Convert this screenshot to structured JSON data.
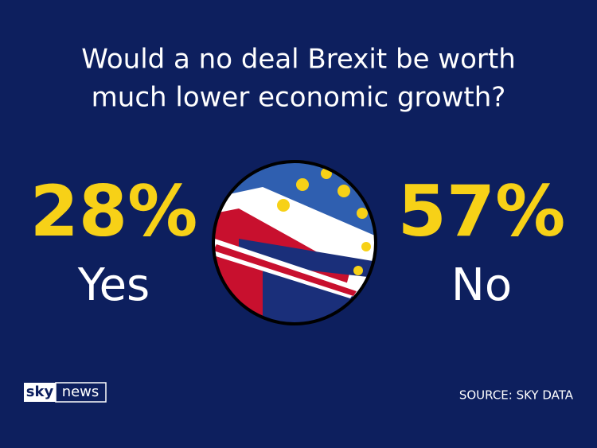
{
  "header": {
    "title_lines": [
      "Would a no deal Brexit be worth",
      "much lower economic growth?"
    ]
  },
  "results": [
    {
      "figure": "28%",
      "answer": "Yes"
    },
    {
      "figure": "57%",
      "answer": "No"
    }
  ],
  "footer": {
    "logo_left": "sky",
    "logo_right": "news",
    "source": "SOURCE: SKY DATA"
  }
}
